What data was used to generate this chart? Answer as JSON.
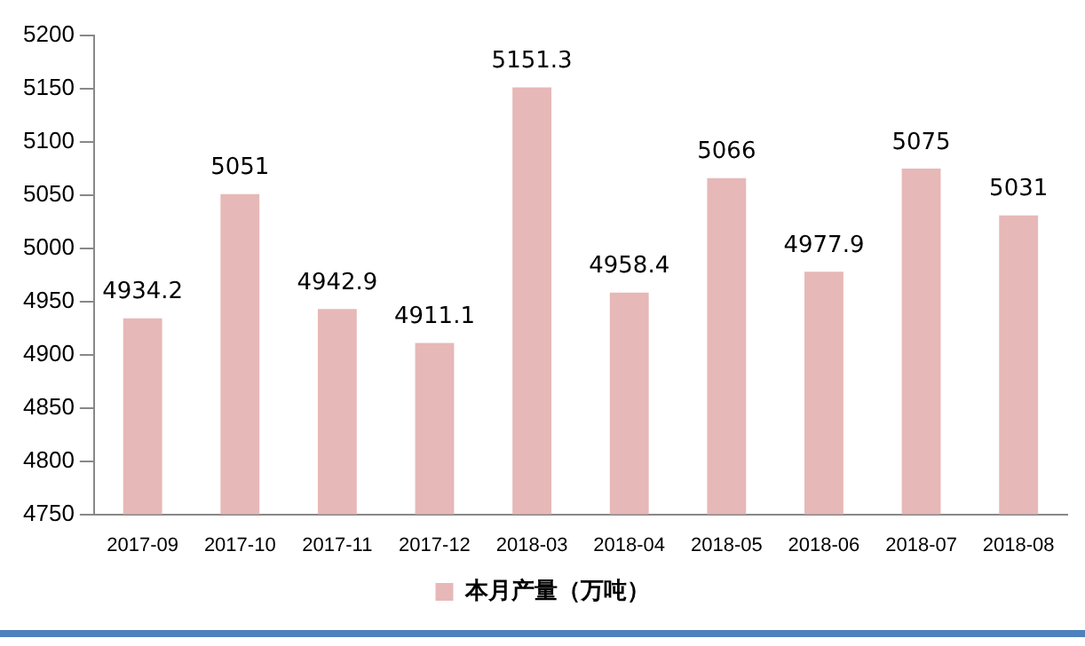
{
  "chart_data": {
    "type": "bar",
    "categories": [
      "2017-09",
      "2017-10",
      "2017-11",
      "2017-12",
      "2018-03",
      "2018-04",
      "2018-05",
      "2018-06",
      "2018-07",
      "2018-08"
    ],
    "series": [
      {
        "name": "本月产量（万吨）",
        "color": "#e6b8b7",
        "values": [
          4934.2,
          5051,
          4942.9,
          4911.1,
          5151.3,
          4958.4,
          5066,
          4977.9,
          5075,
          5031
        ]
      }
    ],
    "ylim": [
      4750,
      5200
    ],
    "yticks": [
      4750,
      4800,
      4850,
      4900,
      4950,
      5000,
      5050,
      5100,
      5150,
      5200
    ],
    "grid": false,
    "legend": "bottom",
    "data_labels": true
  }
}
